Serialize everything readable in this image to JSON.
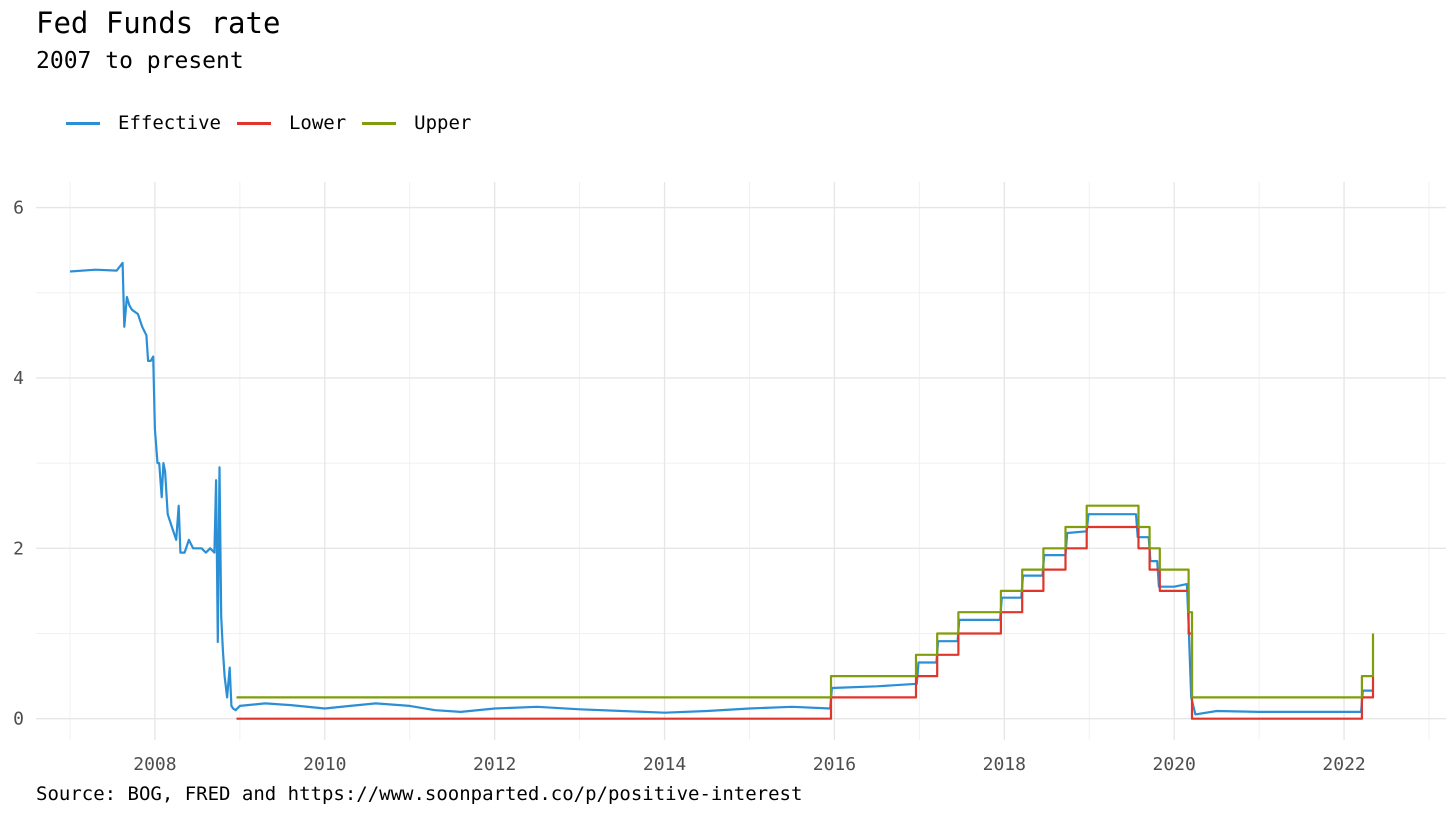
{
  "chart_data": {
    "type": "line",
    "title": "Fed Funds rate",
    "subtitle": "2007 to present",
    "caption": "Source: BOG, FRED and https://www.soonparted.co/p/positive-interest",
    "legend_position": "top-left",
    "grid": true,
    "xlim": [
      2006.6,
      2023.2
    ],
    "ylim": [
      -0.25,
      6.3
    ],
    "x_ticks": [
      2008,
      2010,
      2012,
      2014,
      2016,
      2018,
      2020,
      2022
    ],
    "x_tick_labels": [
      "2008",
      "2010",
      "2012",
      "2014",
      "2016",
      "2018",
      "2020",
      "2022"
    ],
    "y_ticks": [
      0,
      2,
      4,
      6
    ],
    "y_tick_labels": [
      "0",
      "2",
      "4",
      "6"
    ],
    "series": [
      {
        "name": "Effective",
        "color": "#2b8fd6",
        "x": [
          2007.0,
          2007.3,
          2007.55,
          2007.62,
          2007.64,
          2007.67,
          2007.7,
          2007.73,
          2007.8,
          2007.85,
          2007.9,
          2007.92,
          2007.95,
          2007.98,
          2008.0,
          2008.03,
          2008.05,
          2008.08,
          2008.1,
          2008.12,
          2008.15,
          2008.2,
          2008.25,
          2008.28,
          2008.3,
          2008.35,
          2008.4,
          2008.45,
          2008.5,
          2008.55,
          2008.6,
          2008.65,
          2008.7,
          2008.72,
          2008.74,
          2008.76,
          2008.78,
          2008.8,
          2008.82,
          2008.85,
          2008.88,
          2008.9,
          2008.92,
          2008.95,
          2009.0,
          2009.3,
          2009.6,
          2010.0,
          2010.3,
          2010.6,
          2011.0,
          2011.3,
          2011.6,
          2012.0,
          2012.5,
          2013.0,
          2013.5,
          2014.0,
          2014.5,
          2015.0,
          2015.5,
          2015.95,
          2015.97,
          2016.5,
          2016.97,
          2016.99,
          2017.2,
          2017.22,
          2017.45,
          2017.47,
          2017.95,
          2017.97,
          2018.2,
          2018.22,
          2018.45,
          2018.47,
          2018.72,
          2018.74,
          2018.97,
          2018.99,
          2019.3,
          2019.55,
          2019.57,
          2019.7,
          2019.72,
          2019.8,
          2019.82,
          2020.0,
          2020.15,
          2020.17,
          2020.2,
          2020.25,
          2020.5,
          2021.0,
          2021.5,
          2022.0,
          2022.2,
          2022.22,
          2022.33,
          2022.34
        ],
        "values": [
          5.25,
          5.27,
          5.26,
          5.35,
          4.6,
          4.95,
          4.85,
          4.8,
          4.75,
          4.6,
          4.5,
          4.2,
          4.2,
          4.25,
          3.4,
          3.0,
          3.0,
          2.6,
          3.0,
          2.9,
          2.4,
          2.25,
          2.1,
          2.5,
          1.95,
          1.95,
          2.1,
          2.0,
          2.0,
          2.0,
          1.95,
          2.0,
          1.95,
          2.8,
          0.9,
          2.95,
          1.2,
          0.8,
          0.5,
          0.25,
          0.6,
          0.15,
          0.12,
          0.1,
          0.15,
          0.18,
          0.16,
          0.12,
          0.15,
          0.18,
          0.15,
          0.1,
          0.08,
          0.12,
          0.14,
          0.11,
          0.09,
          0.07,
          0.09,
          0.12,
          0.14,
          0.12,
          0.36,
          0.38,
          0.41,
          0.66,
          0.66,
          0.91,
          0.91,
          1.16,
          1.16,
          1.42,
          1.42,
          1.68,
          1.68,
          1.92,
          1.92,
          2.18,
          2.2,
          2.4,
          2.4,
          2.4,
          2.13,
          2.13,
          1.85,
          1.85,
          1.55,
          1.55,
          1.58,
          1.1,
          0.25,
          0.05,
          0.09,
          0.08,
          0.08,
          0.08,
          0.08,
          0.33,
          0.33,
          0.33
        ]
      },
      {
        "name": "Lower",
        "color": "#e0352b",
        "x": [
          2008.96,
          2015.96,
          2015.96,
          2016.96,
          2016.96,
          2017.21,
          2017.21,
          2017.46,
          2017.46,
          2017.96,
          2017.96,
          2018.21,
          2018.21,
          2018.46,
          2018.46,
          2018.72,
          2018.72,
          2018.97,
          2018.97,
          2019.58,
          2019.58,
          2019.71,
          2019.71,
          2019.83,
          2019.83,
          2020.17,
          2020.17,
          2020.21,
          2020.21,
          2022.21,
          2022.21,
          2022.34,
          2022.34
        ],
        "values": [
          0,
          0,
          0.25,
          0.25,
          0.5,
          0.5,
          0.75,
          0.75,
          1.0,
          1.0,
          1.25,
          1.25,
          1.5,
          1.5,
          1.75,
          1.75,
          2.0,
          2.0,
          2.25,
          2.25,
          2.0,
          2.0,
          1.75,
          1.75,
          1.5,
          1.5,
          1.0,
          1.0,
          0,
          0,
          0.25,
          0.25,
          0.5
        ]
      },
      {
        "name": "Upper",
        "color": "#7f9d0c",
        "x": [
          2008.96,
          2015.96,
          2015.96,
          2016.96,
          2016.96,
          2017.21,
          2017.21,
          2017.46,
          2017.46,
          2017.96,
          2017.96,
          2018.21,
          2018.21,
          2018.46,
          2018.46,
          2018.72,
          2018.72,
          2018.97,
          2018.97,
          2019.58,
          2019.58,
          2019.71,
          2019.71,
          2019.83,
          2019.83,
          2020.17,
          2020.17,
          2020.21,
          2020.21,
          2022.21,
          2022.21,
          2022.34,
          2022.34
        ],
        "values": [
          0.25,
          0.25,
          0.5,
          0.5,
          0.75,
          0.75,
          1.0,
          1.0,
          1.25,
          1.25,
          1.5,
          1.5,
          1.75,
          1.75,
          2.0,
          2.0,
          2.25,
          2.25,
          2.5,
          2.5,
          2.25,
          2.25,
          2.0,
          2.0,
          1.75,
          1.75,
          1.25,
          1.25,
          0.25,
          0.25,
          0.5,
          0.5,
          1.0
        ]
      }
    ]
  }
}
